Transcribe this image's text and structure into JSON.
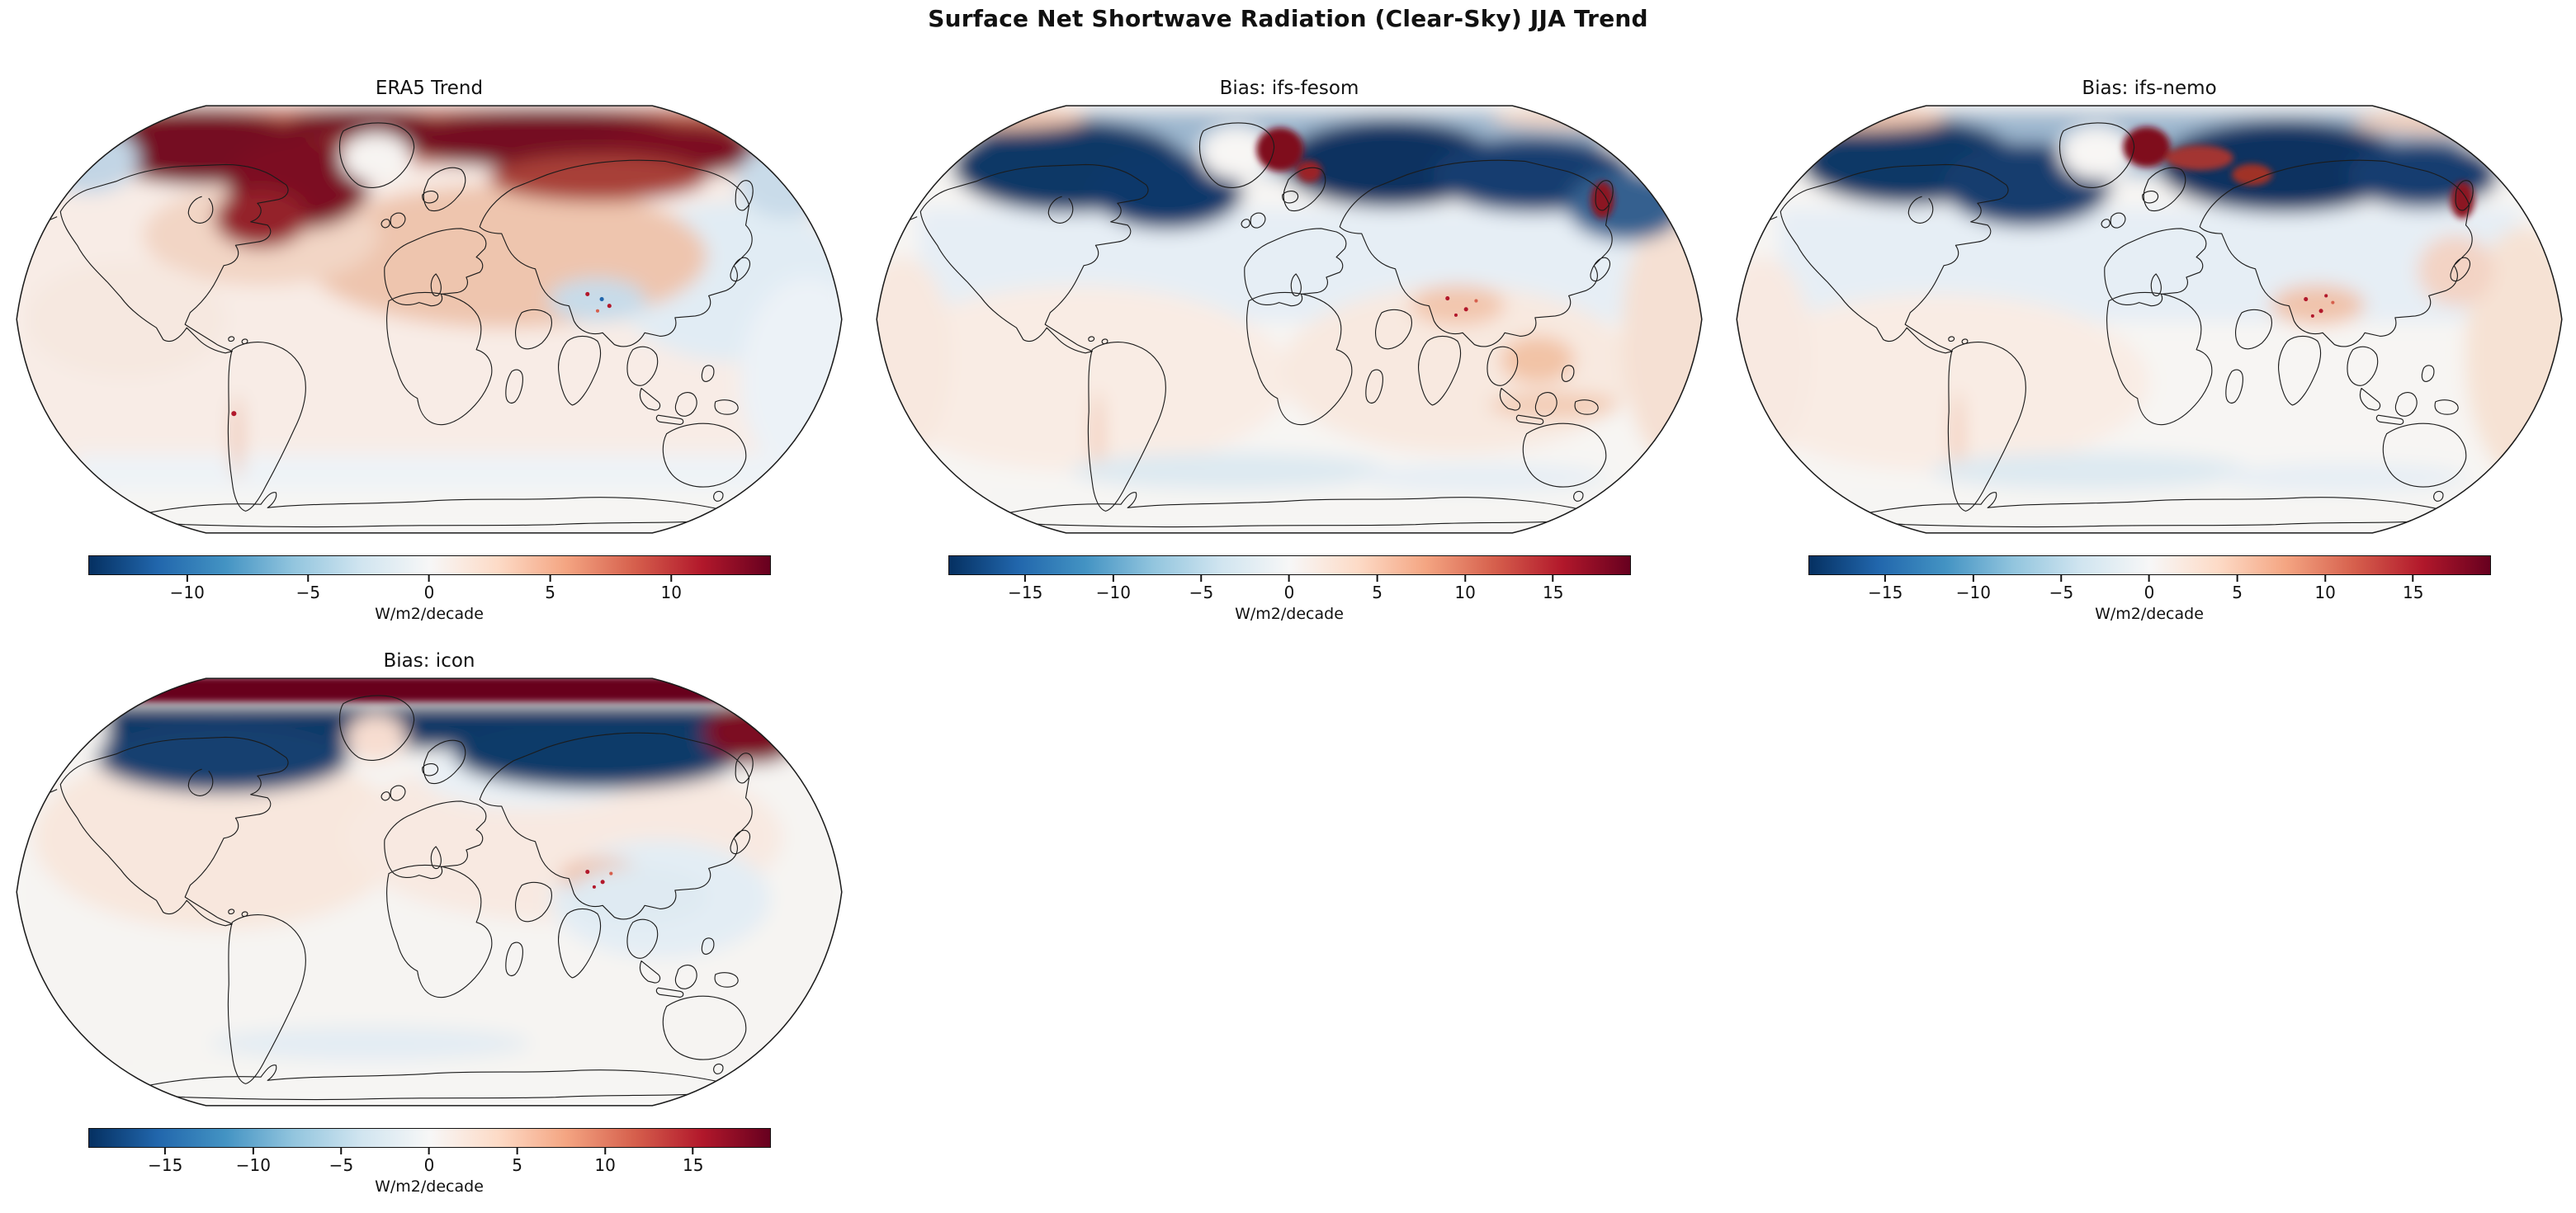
{
  "figure": {
    "title": "Surface Net Shortwave Radiation (Clear-Sky) JJA Trend",
    "background": "#ffffff"
  },
  "colormap": {
    "name": "RdBu_r",
    "stops": [
      "#053061",
      "#2166ac",
      "#4393c3",
      "#92c5de",
      "#d1e5f0",
      "#f7f7f7",
      "#fddbc7",
      "#f4a582",
      "#d6604d",
      "#b2182b",
      "#67001f"
    ]
  },
  "panels": [
    {
      "id": "era5",
      "title": "ERA5 Trend",
      "colorbar": {
        "label": "W/m2/decade",
        "vmin": -14.1,
        "vmax": 14.1,
        "tick_values": [
          -10,
          -5,
          0,
          5,
          10
        ],
        "tick_labels": [
          "−10",
          "−5",
          "0",
          "5",
          "10"
        ]
      }
    },
    {
      "id": "fesom",
      "title": "Bias: ifs-fesom",
      "colorbar": {
        "label": "W/m2/decade",
        "vmin": -19.4,
        "vmax": 19.4,
        "tick_values": [
          -15,
          -10,
          -5,
          0,
          5,
          10,
          15
        ],
        "tick_labels": [
          "−15",
          "−10",
          "−5",
          "0",
          "5",
          "10",
          "15"
        ]
      }
    },
    {
      "id": "nemo",
      "title": "Bias: ifs-nemo",
      "colorbar": {
        "label": "W/m2/decade",
        "vmin": -19.4,
        "vmax": 19.4,
        "tick_values": [
          -15,
          -10,
          -5,
          0,
          5,
          10,
          15
        ],
        "tick_labels": [
          "−15",
          "−10",
          "−5",
          "0",
          "5",
          "10",
          "15"
        ]
      }
    },
    {
      "id": "icon",
      "title": "Bias: icon",
      "colorbar": {
        "label": "W/m2/decade",
        "vmin": -19.4,
        "vmax": 19.4,
        "tick_values": [
          -15,
          -10,
          -5,
          0,
          5,
          10,
          15
        ],
        "tick_labels": [
          "−15",
          "−10",
          "−5",
          "0",
          "5",
          "10",
          "15"
        ]
      }
    }
  ],
  "chart_data": [
    {
      "type": "heatmap",
      "panel": "ERA5 Trend",
      "projection": "Robinson world map with coastlines",
      "variable": "Surface net shortwave radiation (clear-sky) JJA trend",
      "units": "W/m2/decade",
      "colormap": "RdBu_r",
      "value_range": [
        -14.1,
        14.1
      ],
      "colorbar_ticks": [
        -10,
        -5,
        0,
        5,
        10
      ],
      "notable_features": [
        {
          "region": "Arctic Ocean rim, northern Canada, Canadian Archipelago, Baffin/Labrador, Siberian Arctic coast",
          "value": "+10 to +14 (dark red band)"
        },
        {
          "region": "Eastern Europe / western Russia",
          "value": "+3 to +6 (moderate red)"
        },
        {
          "region": "Greenland interior and Antarctica interior",
          "value": "near 0 (white)"
        },
        {
          "region": "Tibetan Plateau",
          "value": "-2 to -4 patch with mixed red/blue speckles"
        },
        {
          "region": "Northwest Pacific and far-east mid-latitude ocean",
          "value": "-1 to -3 (light blue)"
        },
        {
          "region": "Most tropical and southern oceans",
          "value": "0 to +2 (very light pink)"
        }
      ]
    },
    {
      "type": "heatmap",
      "panel": "Bias: ifs-fesom",
      "projection": "Robinson world map with coastlines",
      "variable": "Model bias of clear-sky net shortwave JJA trend vs ERA5",
      "units": "W/m2/decade",
      "colormap": "RdBu_r",
      "value_range": [
        -19.4,
        19.4
      ],
      "colorbar_ticks": [
        -15,
        -10,
        -5,
        0,
        5,
        10,
        15
      ],
      "notable_features": [
        {
          "region": "Arctic Ocean, Canadian Archipelago, Kara/Laptev seas",
          "value": "-15 to -19 (dark blue)"
        },
        {
          "region": "Greenland Sea / Fram Strait east of Greenland",
          "value": "+15 to +19 (dark red patch)"
        },
        {
          "region": "Kamchatka",
          "value": "+12 to +17 (dark red spot)"
        },
        {
          "region": "Tibetan Plateau",
          "value": "+5 to +10 speckled red"
        },
        {
          "region": "Indochina / Indonesia",
          "value": "+3 to +6 (orange)"
        },
        {
          "region": "Northern mid-latitude continents and oceans",
          "value": "-1 to -3 (light blue)"
        },
        {
          "region": "Tropics and subtropical oceans",
          "value": "0 to +2 (near white / faint pink)"
        },
        {
          "region": "Southern Ocean near 60S",
          "value": "-1 to -3 (faint blue band)"
        }
      ]
    },
    {
      "type": "heatmap",
      "panel": "Bias: ifs-nemo",
      "projection": "Robinson world map with coastlines",
      "variable": "Model bias of clear-sky net shortwave JJA trend vs ERA5",
      "units": "W/m2/decade",
      "colormap": "RdBu_r",
      "value_range": [
        -19.4,
        19.4
      ],
      "colorbar_ticks": [
        -15,
        -10,
        -5,
        0,
        5,
        10,
        15
      ],
      "notable_features": [
        {
          "region": "Arctic Ocean, Beaufort/Chukchi, Kara/Laptev seas",
          "value": "-15 to -19 (dark blue)"
        },
        {
          "region": "Fram Strait to Svalbard / Novaya Zemlya",
          "value": "+10 to +19 (dark red patches)"
        },
        {
          "region": "Kamchatka",
          "value": "+12 to +17 (dark red spot)"
        },
        {
          "region": "Tibetan Plateau",
          "value": "+5 to +10 speckled red"
        },
        {
          "region": "Northeast Asia coast and west Pacific rim",
          "value": "+2 to +4 (light orange)"
        },
        {
          "region": "Northern mid-latitudes",
          "value": "-1 to -3 (light blue)"
        },
        {
          "region": "Southern Ocean near 60S",
          "value": "-1 to -3 (faint blue band)"
        }
      ]
    },
    {
      "type": "heatmap",
      "panel": "Bias: icon",
      "projection": "Robinson world map with coastlines",
      "variable": "Model bias of clear-sky net shortwave JJA trend vs ERA5",
      "units": "W/m2/decade",
      "colormap": "RdBu_r",
      "value_range": [
        -19.4,
        19.4
      ],
      "colorbar_ticks": [
        -15,
        -10,
        -5,
        0,
        5,
        10,
        15
      ],
      "notable_features": [
        {
          "region": "Central Arctic (top edge of map)",
          "value": "+15 to +19 (solid dark red band)"
        },
        {
          "region": "Arctic Ocean margins south of the red band",
          "value": "-15 to -19 (dark blue band)"
        },
        {
          "region": "Greenland interior",
          "value": "+1 to +3 (light pink)"
        },
        {
          "region": "North America and Eurasia mid-latitudes",
          "value": "0 to +2 (very light pink)"
        },
        {
          "region": "Tibetan Plateau",
          "value": "+5 to +8 speckled red surrounded by light blue"
        },
        {
          "region": "East Asia / China",
          "value": "-1 to -3 (light blue)"
        },
        {
          "region": "Tropics and southern hemisphere",
          "value": "near 0 (white)"
        }
      ]
    }
  ]
}
